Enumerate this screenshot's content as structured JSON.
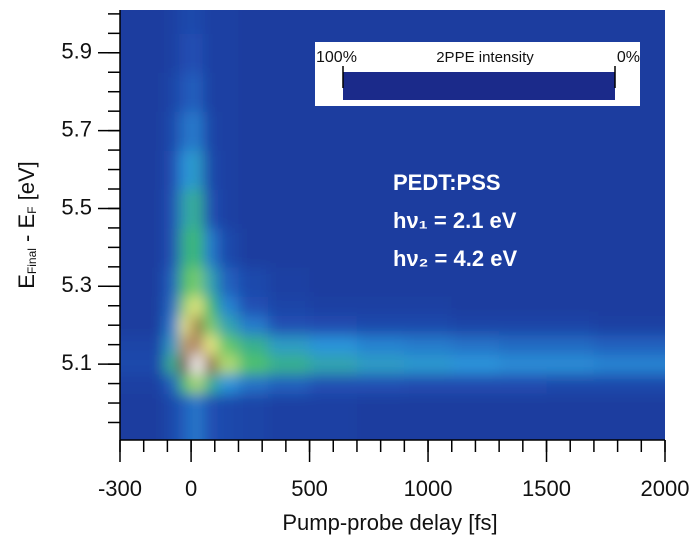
{
  "chart_data": {
    "type": "heatmap",
    "xlabel": "Pump-probe delay [fs]",
    "ylabel": [
      "E",
      "Final",
      " - E",
      "F",
      " [eV]"
    ],
    "annotations": [
      "PEDT:PSS",
      "hν₁ = 2.1 eV",
      "hν₂ = 4.2 eV"
    ],
    "colorbar_title": "2PPE intensity",
    "colorbar_ticks": [
      {
        "value": 100,
        "label": "100%"
      },
      {
        "value": 0,
        "label": "0%"
      }
    ],
    "zlim": [
      0,
      100
    ],
    "colorscale": [
      {
        "value": 0,
        "color": "#1b2a8a"
      },
      {
        "value": 10,
        "color": "#2050b4"
      },
      {
        "value": 18,
        "color": "#2a94da"
      },
      {
        "value": 28,
        "color": "#3cbc6c"
      },
      {
        "value": 38,
        "color": "#9cd46a"
      },
      {
        "value": 45,
        "color": "#ece884"
      },
      {
        "value": 55,
        "color": "#c4a062"
      },
      {
        "value": 65,
        "color": "#5c2c1c"
      },
      {
        "value": 80,
        "color": "#a47466"
      },
      {
        "value": 90,
        "color": "#dcc4bc"
      },
      {
        "value": 100,
        "color": "#ffffff"
      }
    ],
    "xlim": [
      -300,
      2000
    ],
    "ylim": [
      4.905,
      6.01
    ],
    "xticks": [
      -300,
      0,
      500,
      1000,
      1500,
      2000
    ],
    "yticks": [
      5.1,
      5.3,
      5.5,
      5.7,
      5.9
    ],
    "x_minor_step": 100,
    "y_minor_step": 0.05,
    "x": [
      -250,
      -150,
      -75,
      -25,
      25,
      75,
      150,
      250,
      400,
      600,
      800,
      1000,
      1200,
      1400,
      1600,
      1800,
      1950
    ],
    "y": [
      5.0,
      5.05,
      5.1,
      5.15,
      5.2,
      5.25,
      5.3,
      5.4,
      5.5,
      5.6,
      5.7,
      5.8,
      5.9,
      6.0
    ],
    "z": [
      [
        5,
        5,
        8,
        12,
        15,
        10,
        8,
        7,
        6,
        6,
        5,
        5,
        5,
        5,
        5,
        5,
        5
      ],
      [
        6,
        6,
        12,
        30,
        40,
        25,
        18,
        14,
        12,
        10,
        10,
        9,
        9,
        9,
        8,
        8,
        8
      ],
      [
        8,
        8,
        25,
        70,
        100,
        60,
        40,
        30,
        25,
        22,
        20,
        19,
        18,
        17,
        17,
        16,
        16
      ],
      [
        7,
        7,
        20,
        55,
        80,
        45,
        32,
        25,
        20,
        18,
        16,
        15,
        14,
        13,
        13,
        12,
        12
      ],
      [
        5,
        5,
        15,
        45,
        60,
        35,
        22,
        15,
        10,
        9,
        8,
        8,
        7,
        7,
        7,
        6,
        6
      ],
      [
        5,
        5,
        13,
        38,
        45,
        28,
        16,
        10,
        7,
        6,
        6,
        6,
        5,
        5,
        5,
        5,
        5
      ],
      [
        5,
        5,
        12,
        30,
        35,
        22,
        12,
        8,
        6,
        5,
        5,
        5,
        5,
        5,
        5,
        5,
        5
      ],
      [
        5,
        5,
        10,
        25,
        28,
        15,
        8,
        5,
        5,
        5,
        5,
        5,
        5,
        5,
        5,
        5,
        5
      ],
      [
        5,
        5,
        10,
        22,
        25,
        10,
        6,
        5,
        5,
        5,
        5,
        5,
        5,
        5,
        5,
        5,
        5
      ],
      [
        5,
        5,
        9,
        18,
        20,
        8,
        6,
        5,
        5,
        5,
        5,
        5,
        5,
        5,
        5,
        5,
        5
      ],
      [
        5,
        5,
        8,
        14,
        15,
        7,
        6,
        5,
        5,
        5,
        5,
        5,
        5,
        5,
        5,
        5,
        5
      ],
      [
        5,
        5,
        7,
        11,
        12,
        6,
        6,
        5,
        5,
        5,
        5,
        5,
        5,
        5,
        5,
        5,
        5
      ],
      [
        5,
        5,
        6,
        9,
        10,
        6,
        6,
        5,
        5,
        5,
        5,
        5,
        5,
        5,
        5,
        5,
        5
      ],
      [
        5,
        5,
        6,
        8,
        8,
        6,
        6,
        5,
        5,
        5,
        5,
        5,
        5,
        5,
        5,
        5,
        5
      ]
    ]
  }
}
